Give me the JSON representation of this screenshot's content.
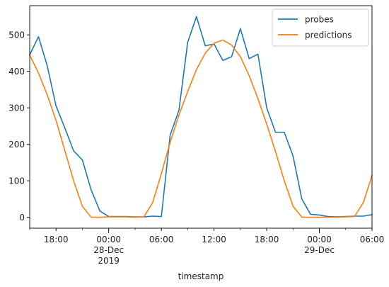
{
  "chart_data": {
    "type": "line",
    "xlabel": "timestamp",
    "ylabel": "",
    "xlim": [
      "2019-12-27 15:00",
      "2019-12-29 06:00"
    ],
    "ylim": [
      -30,
      580
    ],
    "yticks": [
      0,
      100,
      200,
      300,
      400,
      500
    ],
    "xticks_major": [
      {
        "x": "2019-12-28 00:00",
        "label": [
          "00:00",
          "28-Dec",
          "2019"
        ]
      },
      {
        "x": "2019-12-29 00:00",
        "label": [
          "00:00",
          "29-Dec"
        ]
      }
    ],
    "xticks_minor": [
      {
        "x": "2019-12-27 18:00",
        "label": "18:00"
      },
      {
        "x": "2019-12-28 06:00",
        "label": "06:00"
      },
      {
        "x": "2019-12-28 12:00",
        "label": "12:00"
      },
      {
        "x": "2019-12-28 18:00",
        "label": "18:00"
      },
      {
        "x": "2019-12-29 06:00",
        "label": "06:00"
      }
    ],
    "grid": false,
    "legend": "top-right",
    "series": [
      {
        "name": "probes",
        "color": "#1f77b4",
        "points": [
          [
            "2019-12-27 15:00",
            445
          ],
          [
            "2019-12-27 16:00",
            495
          ],
          [
            "2019-12-27 17:00",
            415
          ],
          [
            "2019-12-27 18:00",
            305
          ],
          [
            "2019-12-27 19:00",
            245
          ],
          [
            "2019-12-27 20:00",
            182
          ],
          [
            "2019-12-27 21:00",
            157
          ],
          [
            "2019-12-27 22:00",
            75
          ],
          [
            "2019-12-27 23:00",
            17
          ],
          [
            "2019-12-28 00:00",
            2
          ],
          [
            "2019-12-28 01:00",
            2
          ],
          [
            "2019-12-28 02:00",
            2
          ],
          [
            "2019-12-28 03:00",
            1
          ],
          [
            "2019-12-28 04:00",
            1
          ],
          [
            "2019-12-28 05:00",
            3
          ],
          [
            "2019-12-28 06:00",
            2
          ],
          [
            "2019-12-28 07:00",
            225
          ],
          [
            "2019-12-28 08:00",
            293
          ],
          [
            "2019-12-28 09:00",
            480
          ],
          [
            "2019-12-28 10:00",
            550
          ],
          [
            "2019-12-28 11:00",
            470
          ],
          [
            "2019-12-28 12:00",
            475
          ],
          [
            "2019-12-28 13:00",
            430
          ],
          [
            "2019-12-28 14:00",
            440
          ],
          [
            "2019-12-28 15:00",
            517
          ],
          [
            "2019-12-28 16:00",
            435
          ],
          [
            "2019-12-28 17:00",
            447
          ],
          [
            "2019-12-28 18:00",
            300
          ],
          [
            "2019-12-28 19:00",
            233
          ],
          [
            "2019-12-28 20:00",
            233
          ],
          [
            "2019-12-28 21:00",
            168
          ],
          [
            "2019-12-28 22:00",
            50
          ],
          [
            "2019-12-28 23:00",
            8
          ],
          [
            "2019-12-29 00:00",
            6
          ],
          [
            "2019-12-29 01:00",
            2
          ],
          [
            "2019-12-29 02:00",
            1
          ],
          [
            "2019-12-29 03:00",
            2
          ],
          [
            "2019-12-29 04:00",
            3
          ],
          [
            "2019-12-29 05:00",
            3
          ],
          [
            "2019-12-29 06:00",
            7
          ]
        ]
      },
      {
        "name": "predictions",
        "color": "#ff7f0e",
        "points": [
          [
            "2019-12-27 15:00",
            445
          ],
          [
            "2019-12-27 16:00",
            395
          ],
          [
            "2019-12-27 17:00",
            335
          ],
          [
            "2019-12-27 18:00",
            265
          ],
          [
            "2019-12-27 19:00",
            183
          ],
          [
            "2019-12-27 20:00",
            100
          ],
          [
            "2019-12-27 21:00",
            30
          ],
          [
            "2019-12-27 22:00",
            0
          ],
          [
            "2019-12-27 23:00",
            0
          ],
          [
            "2019-12-28 00:00",
            1
          ],
          [
            "2019-12-28 01:00",
            1
          ],
          [
            "2019-12-28 02:00",
            1
          ],
          [
            "2019-12-28 03:00",
            0
          ],
          [
            "2019-12-28 04:00",
            1
          ],
          [
            "2019-12-28 05:00",
            40
          ],
          [
            "2019-12-28 06:00",
            120
          ],
          [
            "2019-12-28 07:00",
            205
          ],
          [
            "2019-12-28 08:00",
            280
          ],
          [
            "2019-12-28 09:00",
            345
          ],
          [
            "2019-12-28 10:00",
            405
          ],
          [
            "2019-12-28 11:00",
            450
          ],
          [
            "2019-12-28 12:00",
            477
          ],
          [
            "2019-12-28 13:00",
            486
          ],
          [
            "2019-12-28 14:00",
            472
          ],
          [
            "2019-12-28 15:00",
            440
          ],
          [
            "2019-12-28 16:00",
            388
          ],
          [
            "2019-12-28 17:00",
            325
          ],
          [
            "2019-12-28 18:00",
            255
          ],
          [
            "2019-12-28 19:00",
            180
          ],
          [
            "2019-12-28 20:00",
            100
          ],
          [
            "2019-12-28 21:00",
            30
          ],
          [
            "2019-12-28 22:00",
            0
          ],
          [
            "2019-12-28 23:00",
            0
          ],
          [
            "2019-12-29 00:00",
            0
          ],
          [
            "2019-12-29 01:00",
            0
          ],
          [
            "2019-12-29 02:00",
            0
          ],
          [
            "2019-12-29 03:00",
            1
          ],
          [
            "2019-12-29 04:00",
            2
          ],
          [
            "2019-12-29 05:00",
            40
          ],
          [
            "2019-12-29 06:00",
            115
          ]
        ]
      }
    ]
  }
}
